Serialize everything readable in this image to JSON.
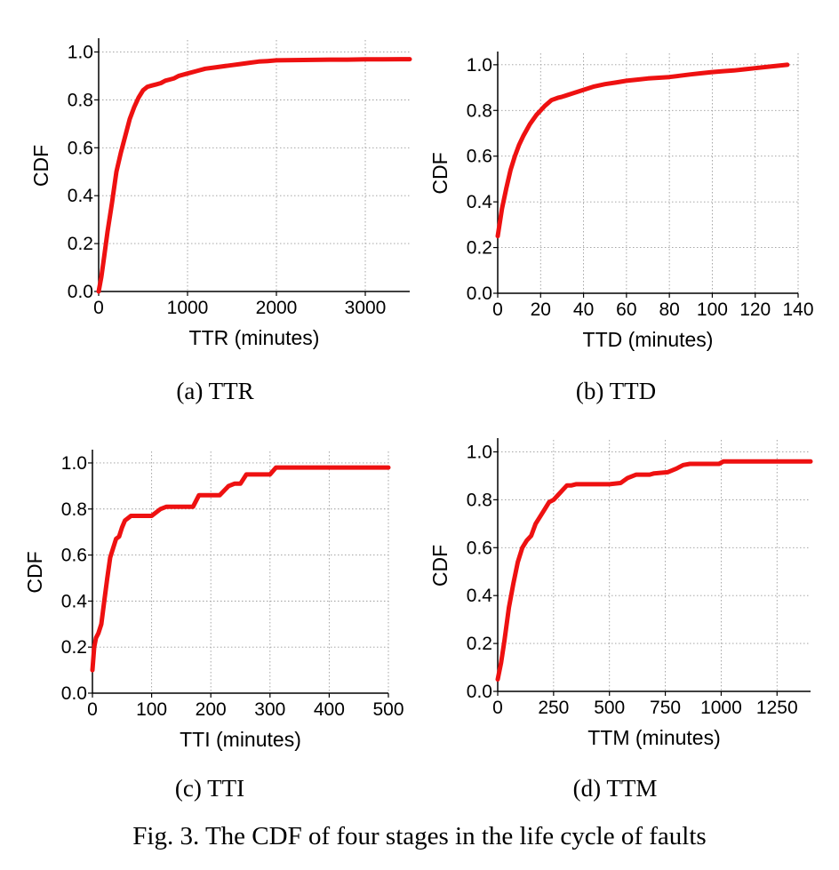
{
  "figure": {
    "caption": "Fig. 3.  The CDF of four stages in the life cycle of faults"
  },
  "series_color": "#ee1111",
  "chart_data": [
    {
      "id": "ttr",
      "type": "line",
      "subcaption": "(a)  TTR",
      "xlabel": "TTR (minutes)",
      "ylabel": "CDF",
      "xlim": [
        0,
        3500
      ],
      "ylim": [
        0,
        1.05
      ],
      "xticks": [
        0,
        1000,
        2000,
        3000
      ],
      "xtick_labels": [
        "0",
        "1000",
        "2000",
        "3000"
      ],
      "yticks": [
        0,
        0.2,
        0.4,
        0.6,
        0.8,
        1.0
      ],
      "ytick_labels": [
        "0.0",
        "0.2",
        "0.4",
        "0.6",
        "0.8",
        "1.0"
      ],
      "grid": true,
      "series": [
        {
          "name": "TTR",
          "x": [
            0,
            30,
            60,
            100,
            150,
            200,
            250,
            300,
            350,
            400,
            450,
            500,
            550,
            600,
            650,
            700,
            750,
            800,
            850,
            900,
            950,
            1000,
            1100,
            1200,
            1300,
            1400,
            1500,
            1600,
            1700,
            1800,
            1900,
            2000,
            2200,
            2400,
            2600,
            2800,
            3000,
            3200,
            3400,
            3500
          ],
          "y": [
            0,
            0.06,
            0.14,
            0.25,
            0.37,
            0.5,
            0.58,
            0.65,
            0.72,
            0.77,
            0.81,
            0.84,
            0.855,
            0.86,
            0.865,
            0.87,
            0.88,
            0.885,
            0.89,
            0.9,
            0.905,
            0.91,
            0.92,
            0.93,
            0.935,
            0.94,
            0.945,
            0.95,
            0.955,
            0.96,
            0.962,
            0.965,
            0.966,
            0.967,
            0.968,
            0.968,
            0.969,
            0.969,
            0.97,
            0.97
          ]
        }
      ]
    },
    {
      "id": "ttd",
      "type": "line",
      "subcaption": "(b)  TTD",
      "xlabel": "TTD (minutes)",
      "ylabel": "CDF",
      "xlim": [
        0,
        140
      ],
      "ylim": [
        0,
        1.05
      ],
      "xticks": [
        0,
        20,
        40,
        60,
        80,
        100,
        120,
        140
      ],
      "xtick_labels": [
        "0",
        "20",
        "40",
        "60",
        "80",
        "100",
        "120",
        "140"
      ],
      "yticks": [
        0,
        0.2,
        0.4,
        0.6,
        0.8,
        1.0
      ],
      "ytick_labels": [
        "0.0",
        "0.2",
        "0.4",
        "0.6",
        "0.8",
        "1.0"
      ],
      "grid": true,
      "series": [
        {
          "name": "TTD",
          "x": [
            0,
            2,
            4,
            6,
            8,
            10,
            12,
            15,
            18,
            20,
            22,
            25,
            28,
            30,
            35,
            40,
            45,
            50,
            55,
            60,
            65,
            70,
            75,
            80,
            85,
            90,
            95,
            100,
            105,
            110,
            115,
            120,
            125,
            130,
            135
          ],
          "y": [
            0.25,
            0.37,
            0.46,
            0.54,
            0.6,
            0.65,
            0.69,
            0.74,
            0.78,
            0.8,
            0.82,
            0.845,
            0.855,
            0.86,
            0.875,
            0.89,
            0.905,
            0.915,
            0.922,
            0.93,
            0.935,
            0.94,
            0.943,
            0.946,
            0.952,
            0.958,
            0.963,
            0.968,
            0.972,
            0.975,
            0.98,
            0.985,
            0.99,
            0.995,
            1.0
          ]
        }
      ]
    },
    {
      "id": "tti",
      "type": "line",
      "subcaption": "(c)  TTI",
      "xlabel": "TTI (minutes)",
      "ylabel": "CDF",
      "xlim": [
        0,
        500
      ],
      "ylim": [
        0,
        1.05
      ],
      "xticks": [
        0,
        100,
        200,
        300,
        400,
        500
      ],
      "xtick_labels": [
        "0",
        "100",
        "200",
        "300",
        "400",
        "500"
      ],
      "yticks": [
        0,
        0.2,
        0.4,
        0.6,
        0.8,
        1.0
      ],
      "ytick_labels": [
        "0.0",
        "0.2",
        "0.4",
        "0.6",
        "0.8",
        "1.0"
      ],
      "grid": true,
      "series": [
        {
          "name": "TTI",
          "x": [
            0,
            3,
            6,
            10,
            15,
            20,
            25,
            30,
            35,
            40,
            45,
            50,
            55,
            60,
            65,
            70,
            80,
            100,
            115,
            125,
            140,
            170,
            180,
            190,
            215,
            230,
            240,
            250,
            260,
            280,
            300,
            310,
            320,
            350,
            400,
            450,
            500
          ],
          "y": [
            0.1,
            0.2,
            0.24,
            0.26,
            0.3,
            0.4,
            0.5,
            0.59,
            0.63,
            0.67,
            0.68,
            0.72,
            0.75,
            0.76,
            0.77,
            0.77,
            0.77,
            0.77,
            0.8,
            0.81,
            0.81,
            0.81,
            0.86,
            0.86,
            0.86,
            0.9,
            0.91,
            0.91,
            0.95,
            0.95,
            0.95,
            0.98,
            0.98,
            0.98,
            0.98,
            0.98,
            0.98
          ]
        }
      ]
    },
    {
      "id": "ttm",
      "type": "line",
      "subcaption": "(d)  TTM",
      "xlabel": "TTM (minutes)",
      "ylabel": "CDF",
      "xlim": [
        0,
        1400
      ],
      "ylim": [
        0,
        1.05
      ],
      "xticks": [
        0,
        250,
        500,
        750,
        1000,
        1250
      ],
      "xtick_labels": [
        "0",
        "250",
        "500",
        "750",
        "1000",
        "1250"
      ],
      "yticks": [
        0,
        0.2,
        0.4,
        0.6,
        0.8,
        1.0
      ],
      "ytick_labels": [
        "0.0",
        "0.2",
        "0.4",
        "0.6",
        "0.8",
        "1.0"
      ],
      "grid": true,
      "series": [
        {
          "name": "TTM",
          "x": [
            0,
            15,
            30,
            50,
            70,
            90,
            110,
            130,
            150,
            170,
            190,
            210,
            230,
            250,
            270,
            290,
            310,
            330,
            350,
            380,
            420,
            500,
            550,
            580,
            620,
            680,
            700,
            760,
            800,
            830,
            860,
            950,
            990,
            1010,
            1100,
            1200,
            1300,
            1400
          ],
          "y": [
            0.05,
            0.12,
            0.21,
            0.35,
            0.45,
            0.54,
            0.6,
            0.63,
            0.65,
            0.7,
            0.73,
            0.76,
            0.79,
            0.8,
            0.82,
            0.84,
            0.86,
            0.86,
            0.865,
            0.865,
            0.865,
            0.865,
            0.87,
            0.89,
            0.905,
            0.905,
            0.91,
            0.915,
            0.93,
            0.945,
            0.95,
            0.95,
            0.95,
            0.96,
            0.96,
            0.96,
            0.96,
            0.96
          ]
        }
      ]
    }
  ]
}
